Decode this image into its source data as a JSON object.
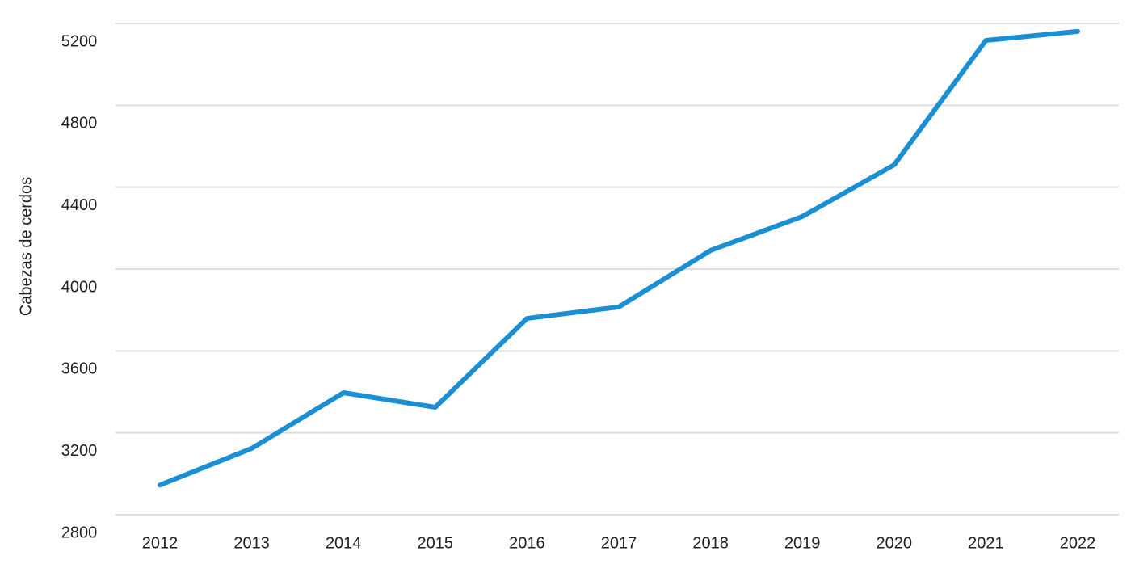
{
  "chart_data": {
    "type": "line",
    "y_label": "Cabezas de cerdos",
    "categories": [
      "2012",
      "2013",
      "2014",
      "2015",
      "2016",
      "2017",
      "2018",
      "2019",
      "2020",
      "2021",
      "2022"
    ],
    "series": [
      {
        "name": "Cabezas de cerdos",
        "color": "#1b8fd3",
        "values": [
          2945,
          3124,
          3396,
          3325,
          3759,
          3815,
          4091,
          4257,
          4509,
          5117,
          5161
        ]
      }
    ],
    "ylim": [
      2800,
      5200
    ],
    "yticks": [
      2800,
      3200,
      3600,
      4000,
      4400,
      4800,
      5200
    ],
    "grid": true
  }
}
